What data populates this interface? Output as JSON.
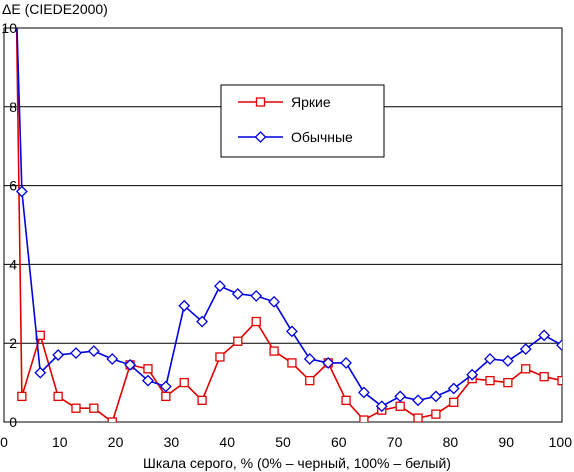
{
  "chart_data": {
    "type": "line",
    "title": "",
    "ylabel": "ΔE (CIEDE2000)",
    "xlabel": "Шкала серого, % (0% – черный, 100% – белый)",
    "xlim": [
      0,
      100
    ],
    "ylim": [
      0,
      10
    ],
    "x_ticks": [
      "0",
      "10",
      "20",
      "30",
      "40",
      "50",
      "60",
      "70",
      "80",
      "90",
      "100"
    ],
    "y_ticks": [
      "0",
      "2",
      "4",
      "6",
      "8",
      "10"
    ],
    "grid": "horizontal",
    "legend_position": "top-center",
    "series": [
      {
        "name": "Яркие",
        "color": "#e00000",
        "marker": "square",
        "x": [
          2.2,
          3.2,
          6.5,
          9.7,
          12.9,
          16.1,
          19.4,
          22.6,
          25.8,
          29.0,
          32.3,
          35.5,
          38.7,
          41.9,
          45.2,
          48.4,
          51.6,
          54.8,
          58.1,
          61.3,
          64.5,
          67.7,
          71.0,
          74.2,
          77.4,
          80.6,
          83.9,
          87.1,
          90.3,
          93.5,
          96.8,
          100
        ],
        "y": [
          10.6,
          0.65,
          2.2,
          0.65,
          0.35,
          0.35,
          0.0,
          1.45,
          1.35,
          0.65,
          1.0,
          0.55,
          1.65,
          2.05,
          2.55,
          1.8,
          1.5,
          1.05,
          1.5,
          0.55,
          0.05,
          0.3,
          0.4,
          0.1,
          0.2,
          0.5,
          1.1,
          1.05,
          1.0,
          1.35,
          1.15,
          1.05
        ]
      },
      {
        "name": "Обычные",
        "color": "#0000e0",
        "marker": "diamond",
        "x": [
          2.2,
          3.2,
          6.5,
          9.7,
          12.9,
          16.1,
          19.4,
          22.6,
          25.8,
          29.0,
          32.3,
          35.5,
          38.7,
          41.9,
          45.2,
          48.4,
          51.6,
          54.8,
          58.1,
          61.3,
          64.5,
          67.7,
          71.0,
          74.2,
          77.4,
          80.6,
          83.9,
          87.1,
          90.3,
          93.5,
          96.8,
          100
        ],
        "y": [
          10.6,
          5.85,
          1.25,
          1.7,
          1.75,
          1.8,
          1.6,
          1.45,
          1.05,
          0.9,
          2.95,
          2.55,
          3.45,
          3.25,
          3.2,
          3.05,
          2.3,
          1.6,
          1.5,
          1.5,
          0.75,
          0.4,
          0.65,
          0.55,
          0.65,
          0.85,
          1.2,
          1.6,
          1.55,
          1.85,
          2.2,
          1.95
        ]
      }
    ]
  }
}
